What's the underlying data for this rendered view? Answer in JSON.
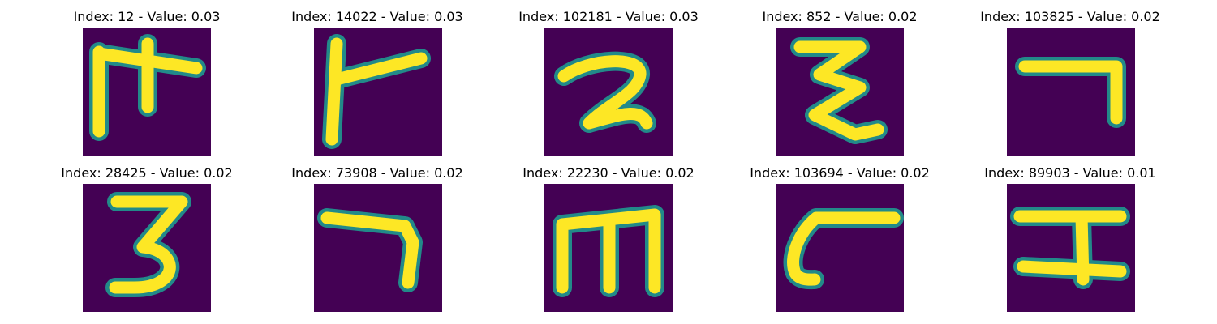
{
  "figure": {
    "panels": [
      {
        "title": "Index: 12 - Value: 0.03",
        "glyph_name": "character-1"
      },
      {
        "title": "Index: 14022 - Value: 0.03",
        "glyph_name": "character-2"
      },
      {
        "title": "Index: 102181 - Value: 0.03",
        "glyph_name": "character-3"
      },
      {
        "title": "Index: 852 - Value: 0.02",
        "glyph_name": "character-4"
      },
      {
        "title": "Index: 103825 - Value: 0.02",
        "glyph_name": "character-5"
      },
      {
        "title": "Index: 28425 - Value: 0.02",
        "glyph_name": "character-6"
      },
      {
        "title": "Index: 73908 - Value: 0.02",
        "glyph_name": "character-7"
      },
      {
        "title": "Index: 22230 - Value: 0.02",
        "glyph_name": "character-8"
      },
      {
        "title": "Index: 103694 - Value: 0.02",
        "glyph_name": "character-9"
      },
      {
        "title": "Index: 89903 - Value: 0.01",
        "glyph_name": "character-10"
      }
    ],
    "colors": {
      "background": "#440154",
      "stroke_core": "#fde725",
      "stroke_edge": "#21918c"
    }
  }
}
